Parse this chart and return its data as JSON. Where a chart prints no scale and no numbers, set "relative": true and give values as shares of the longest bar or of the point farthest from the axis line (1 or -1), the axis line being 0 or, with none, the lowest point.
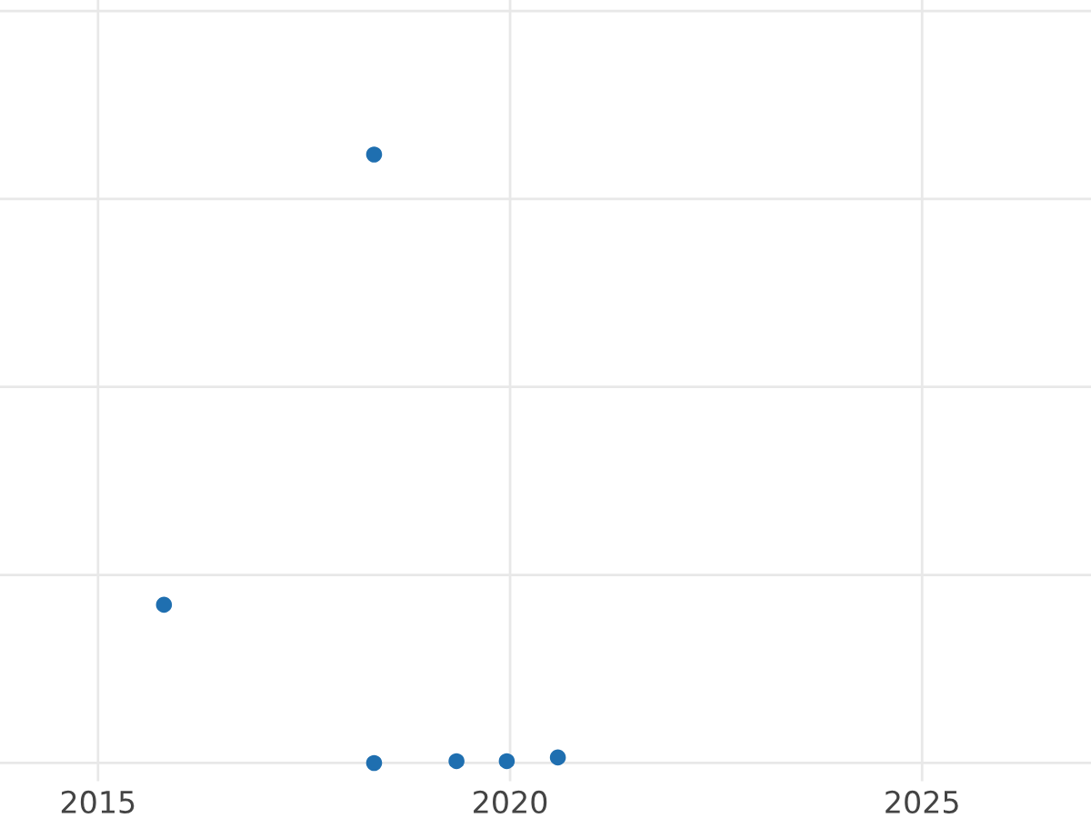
{
  "chart_data": {
    "type": "scatter",
    "relative": true,
    "x": [
      2015.8,
      2018.35,
      2018.35,
      2019.35,
      2019.96,
      2020.58
    ],
    "values": [
      0.26,
      1,
      0,
      0.003,
      0.003,
      0.009
    ],
    "color": "#1f6fb0",
    "marker": "circle",
    "xlim": [
      2013.81,
      2027.05
    ],
    "xticks": [
      2015,
      2020,
      2025
    ],
    "grid": true,
    "tick_labels": "x"
  }
}
